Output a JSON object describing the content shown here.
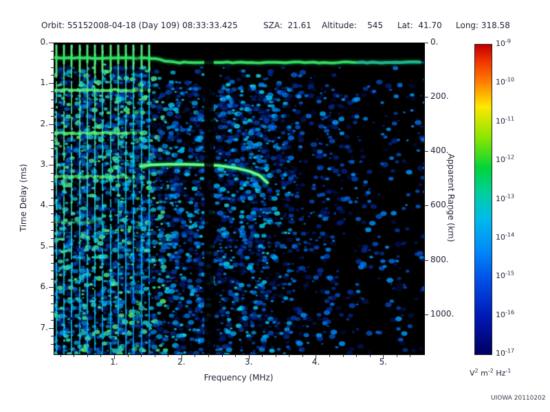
{
  "header": {
    "items": [
      "Orbit: 5515",
      "2008-04-18 (Day 109) 08:33:33.425",
      "SZA:  21.61",
      "Altitude:    545",
      "Lat:  41.70",
      "Long: 318.58"
    ]
  },
  "credit": "UIOWA 20110202",
  "chart_data": {
    "type": "heatmap",
    "description": "Radar sounder ionogram: received spectral density vs frequency and time delay",
    "x_axis": {
      "label": "Frequency (MHz)",
      "range": [
        0.1,
        5.6
      ],
      "ticks": [
        1,
        2,
        3,
        4,
        5
      ],
      "tick_labels": [
        "1.",
        "2.",
        "3.",
        "4.",
        "5."
      ],
      "minor_step": 0.2
    },
    "y_axis": {
      "label": "Time Delay (ms)",
      "range": [
        0,
        7.63
      ],
      "ticks": [
        0,
        1,
        2,
        3,
        4,
        5,
        6,
        7
      ],
      "tick_labels": [
        "0.",
        "1.",
        "2.",
        "3.",
        "4.",
        "5.",
        "6.",
        "7."
      ],
      "minor_step": 0.2,
      "direction": "down"
    },
    "right_axis": {
      "label": "Apparent Range (km)",
      "ticks": [
        0,
        200,
        400,
        600,
        800,
        1000
      ],
      "tick_labels": [
        "0.",
        "200.",
        "400.",
        "600.",
        "800.",
        "1000."
      ],
      "km_per_ms": 150
    },
    "colorbar": {
      "scale": "log",
      "max": "1e-9",
      "min": "1e-17",
      "exponents": [
        -9,
        -10,
        -11,
        -12,
        -13,
        -14,
        -15,
        -16,
        -17
      ],
      "units_parts": [
        [
          "V",
          false
        ],
        [
          "2",
          true
        ],
        [
          " m",
          false
        ],
        [
          "-2",
          true
        ],
        [
          " Hz",
          false
        ],
        [
          "-1",
          true
        ]
      ],
      "gradient": [
        [
          0.0,
          "#c00000"
        ],
        [
          0.05,
          "#f03000"
        ],
        [
          0.12,
          "#ff7e00"
        ],
        [
          0.2,
          "#ffe800"
        ],
        [
          0.3,
          "#8ce600"
        ],
        [
          0.4,
          "#00d43c"
        ],
        [
          0.48,
          "#00cfa0"
        ],
        [
          0.56,
          "#00bce8"
        ],
        [
          0.66,
          "#008cfa"
        ],
        [
          0.76,
          "#0050e8"
        ],
        [
          0.88,
          "#0018b4"
        ],
        [
          1.0,
          "#000060"
        ]
      ]
    },
    "features": {
      "noise_seed": 12,
      "surface_reflection": {
        "delay_ms_left": 0.36,
        "delay_ms_right": 0.47,
        "step_freq": [
          1.5,
          1.9
        ]
      },
      "plasma_harmonics_mhz": [
        0.13,
        0.245,
        0.36,
        0.475,
        0.59,
        0.705,
        0.82,
        0.935,
        1.05,
        1.165,
        1.28,
        1.395,
        1.51
      ],
      "cyclotron_echoes": [
        {
          "delay_ms": 1.15,
          "max_freq_mhz": 1.55,
          "intensity": 1.0
        },
        {
          "delay_ms": 2.2,
          "max_freq_mhz": 1.5,
          "intensity": 0.95
        },
        {
          "delay_ms": 3.27,
          "max_freq_mhz": 1.32,
          "intensity": 0.8
        },
        {
          "delay_ms": 4.38,
          "max_freq_mhz": 0.85,
          "intensity": 0.45
        }
      ],
      "ionosphere_trace": [
        [
          1.38,
          3.02
        ],
        [
          1.55,
          2.98
        ],
        [
          1.8,
          2.97
        ],
        [
          2.05,
          2.97
        ],
        [
          2.3,
          2.98
        ],
        [
          2.55,
          3.0
        ],
        [
          2.8,
          3.06
        ],
        [
          3.0,
          3.14
        ],
        [
          3.15,
          3.24
        ],
        [
          3.27,
          3.42
        ]
      ],
      "band_gap_mhz": [
        [
          2.33,
          2.47,
          0.85
        ],
        [
          1.3,
          1.37,
          0.3
        ]
      ]
    }
  }
}
